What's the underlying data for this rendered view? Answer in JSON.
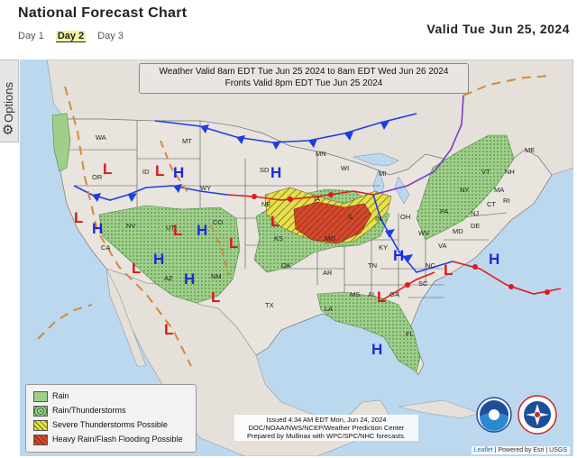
{
  "header": {
    "title": "National Forecast Chart",
    "valid": "Valid Tue Jun 25, 2024"
  },
  "tabs": [
    {
      "label": "Day 1",
      "active": false
    },
    {
      "label": "Day 2",
      "active": true
    },
    {
      "label": "Day 3",
      "active": false
    }
  ],
  "sidebar": {
    "options_label": "Options",
    "icon": "gear-icon"
  },
  "map": {
    "header_line1": "Weather Valid 8am EDT Tue Jun 25 2024 to 8am EDT Wed Jun 26 2024",
    "header_line2": "Fronts Valid 8pm EDT Tue Jun 25 2024",
    "legend": [
      {
        "label": "Rain",
        "color": "#9fcf8a"
      },
      {
        "label": "Rain/Thunderstorms",
        "color": "#8fc47a"
      },
      {
        "label": "Severe Thunderstorms Possible",
        "color": "#e6e04a"
      },
      {
        "label": "Heavy Rain/Flash Flooding Possible",
        "color": "#e05a4a"
      }
    ],
    "issued_line1": "Issued  4:34 AM EDT Mon, Jun 24, 2024",
    "issued_line2": "DOC/NOAA/NWS/NCEP/Weather Prediction Center",
    "issued_line3": "Prepared by Mullinax with WPC/SPC/NHC forecasts.",
    "attribution_leaflet": "Leaflet",
    "attribution_rest": "| Powered by Esri | USGS",
    "state_labels": [
      "WA",
      "OR",
      "ID",
      "MT",
      "WY",
      "NV",
      "CA",
      "UT",
      "CO",
      "AZ",
      "NM",
      "TX",
      "SD",
      "NE",
      "KS",
      "OK",
      "IA",
      "MO",
      "AR",
      "LA",
      "MS",
      "AL",
      "GA",
      "FL",
      "TN",
      "KY",
      "IL",
      "IN",
      "OH",
      "MI",
      "WI",
      "MN",
      "NC",
      "SC",
      "VA",
      "WV",
      "PA",
      "NY",
      "ME",
      "MD",
      "DE",
      "NJ",
      "VT",
      "NH",
      "MA",
      "CT",
      "RI"
    ],
    "pressure_labels": {
      "high": "H",
      "low": "L"
    },
    "colors": {
      "water": "#bcd8ee",
      "land": "#e7e2dc",
      "cold_front": "#1c3fe0",
      "warm_front": "#e01818",
      "stationary": "#7a3cc8",
      "trough": "#d28a3c"
    }
  }
}
